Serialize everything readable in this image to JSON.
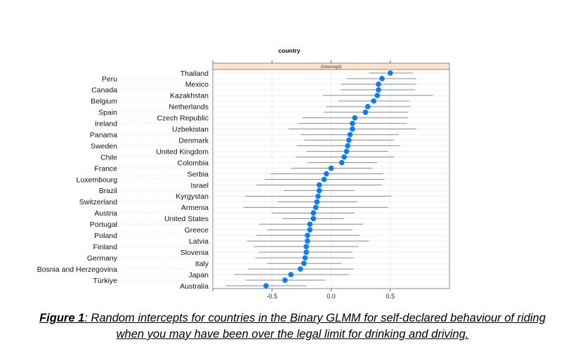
{
  "chart_data": {
    "type": "scatter",
    "subtype": "dotplot-with-intervals",
    "title": "country",
    "strip_label": "(Intercept)",
    "xlabel": "",
    "ylabel": "",
    "xlim": [
      -1.0,
      1.0
    ],
    "xticks": [
      -0.5,
      0.0,
      0.5
    ],
    "xtick_labels": [
      "-0.5",
      "0.0",
      "0.5"
    ],
    "grid": true,
    "point_color": "#0a7cf5",
    "interval_color": "#8a8a8a",
    "strip_color": "#fde3c8",
    "categories": [
      "Thailand",
      "Peru",
      "Mexico",
      "Canada",
      "Kazakhstan",
      "Belgium",
      "Netherlands",
      "Spain",
      "Czech Republic",
      "Ireland",
      "Uzbekistan",
      "Panama",
      "Denmark",
      "Sweden",
      "United Kingdom",
      "Chile",
      "Colombia",
      "France",
      "Serbia",
      "Luxembourg",
      "Israel",
      "Brazil",
      "Kyrgystan",
      "Switzerland",
      "Armenia",
      "Austria",
      "United States",
      "Portugal",
      "Greece",
      "Poland",
      "Latvia",
      "Finland",
      "Slovenia",
      "Germany",
      "Italy",
      "Bosnia and Herzegovina",
      "Japan",
      "Türkiye",
      "Australia"
    ],
    "values": [
      0.5,
      0.43,
      0.4,
      0.4,
      0.39,
      0.36,
      0.31,
      0.29,
      0.2,
      0.18,
      0.18,
      0.16,
      0.15,
      0.14,
      0.13,
      0.11,
      0.09,
      0.0,
      -0.04,
      -0.06,
      -0.1,
      -0.1,
      -0.11,
      -0.12,
      -0.13,
      -0.15,
      -0.15,
      -0.18,
      -0.18,
      -0.2,
      -0.2,
      -0.21,
      -0.21,
      -0.22,
      -0.23,
      -0.26,
      -0.34,
      -0.39,
      -0.55
    ],
    "lower": [
      0.32,
      0.13,
      0.08,
      0.08,
      -0.07,
      0.06,
      -0.04,
      -0.06,
      -0.24,
      -0.28,
      -0.36,
      -0.26,
      -0.23,
      -0.29,
      -0.21,
      -0.3,
      -0.2,
      -0.34,
      -0.51,
      -0.56,
      -0.63,
      -0.4,
      -0.73,
      -0.45,
      -0.74,
      -0.5,
      -0.41,
      -0.61,
      -0.54,
      -0.63,
      -0.71,
      -0.65,
      -0.61,
      -0.64,
      -0.54,
      -0.7,
      -0.82,
      -0.72,
      -0.89
    ],
    "upper": [
      0.69,
      0.72,
      0.72,
      0.71,
      0.86,
      0.66,
      0.67,
      0.65,
      0.65,
      0.64,
      0.72,
      0.57,
      0.53,
      0.58,
      0.48,
      0.53,
      0.39,
      0.35,
      0.44,
      0.45,
      0.43,
      0.2,
      0.51,
      0.22,
      0.48,
      0.2,
      0.11,
      0.27,
      0.18,
      0.24,
      0.32,
      0.23,
      0.18,
      0.19,
      0.09,
      0.19,
      0.15,
      -0.05,
      -0.21
    ]
  },
  "caption": {
    "figure_label": "Figure 1",
    "line1": ": Random intercepts for countries in the Binary GLMM for self-declared behaviour of riding",
    "line2": "when you may have been over the legal limit for drinking and driving."
  }
}
